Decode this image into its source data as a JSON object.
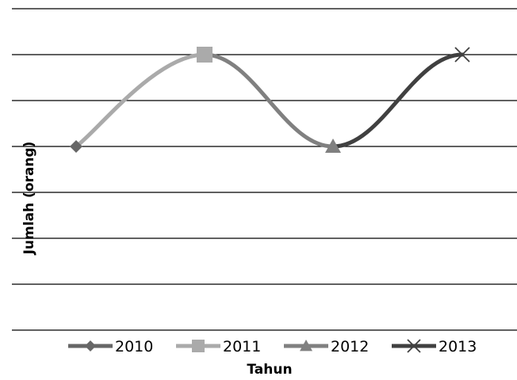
{
  "chart_data": {
    "type": "line",
    "title": "",
    "xlabel": "Tahun",
    "ylabel": "Jumlah (orang)",
    "categories": [
      "2010",
      "2011",
      "2012",
      "2013"
    ],
    "values": [
      4,
      6,
      4,
      6
    ],
    "ylim": [
      0,
      7
    ],
    "grid": true,
    "smooth": true,
    "legend_position": "bottom",
    "series": [
      {
        "name": "2010",
        "color": "#666666",
        "marker": "diamond"
      },
      {
        "name": "2011",
        "color": "#aaaaaa",
        "marker": "square"
      },
      {
        "name": "2012",
        "color": "#808080",
        "marker": "triangle"
      },
      {
        "name": "2013",
        "color": "#404040",
        "marker": "x"
      }
    ]
  }
}
